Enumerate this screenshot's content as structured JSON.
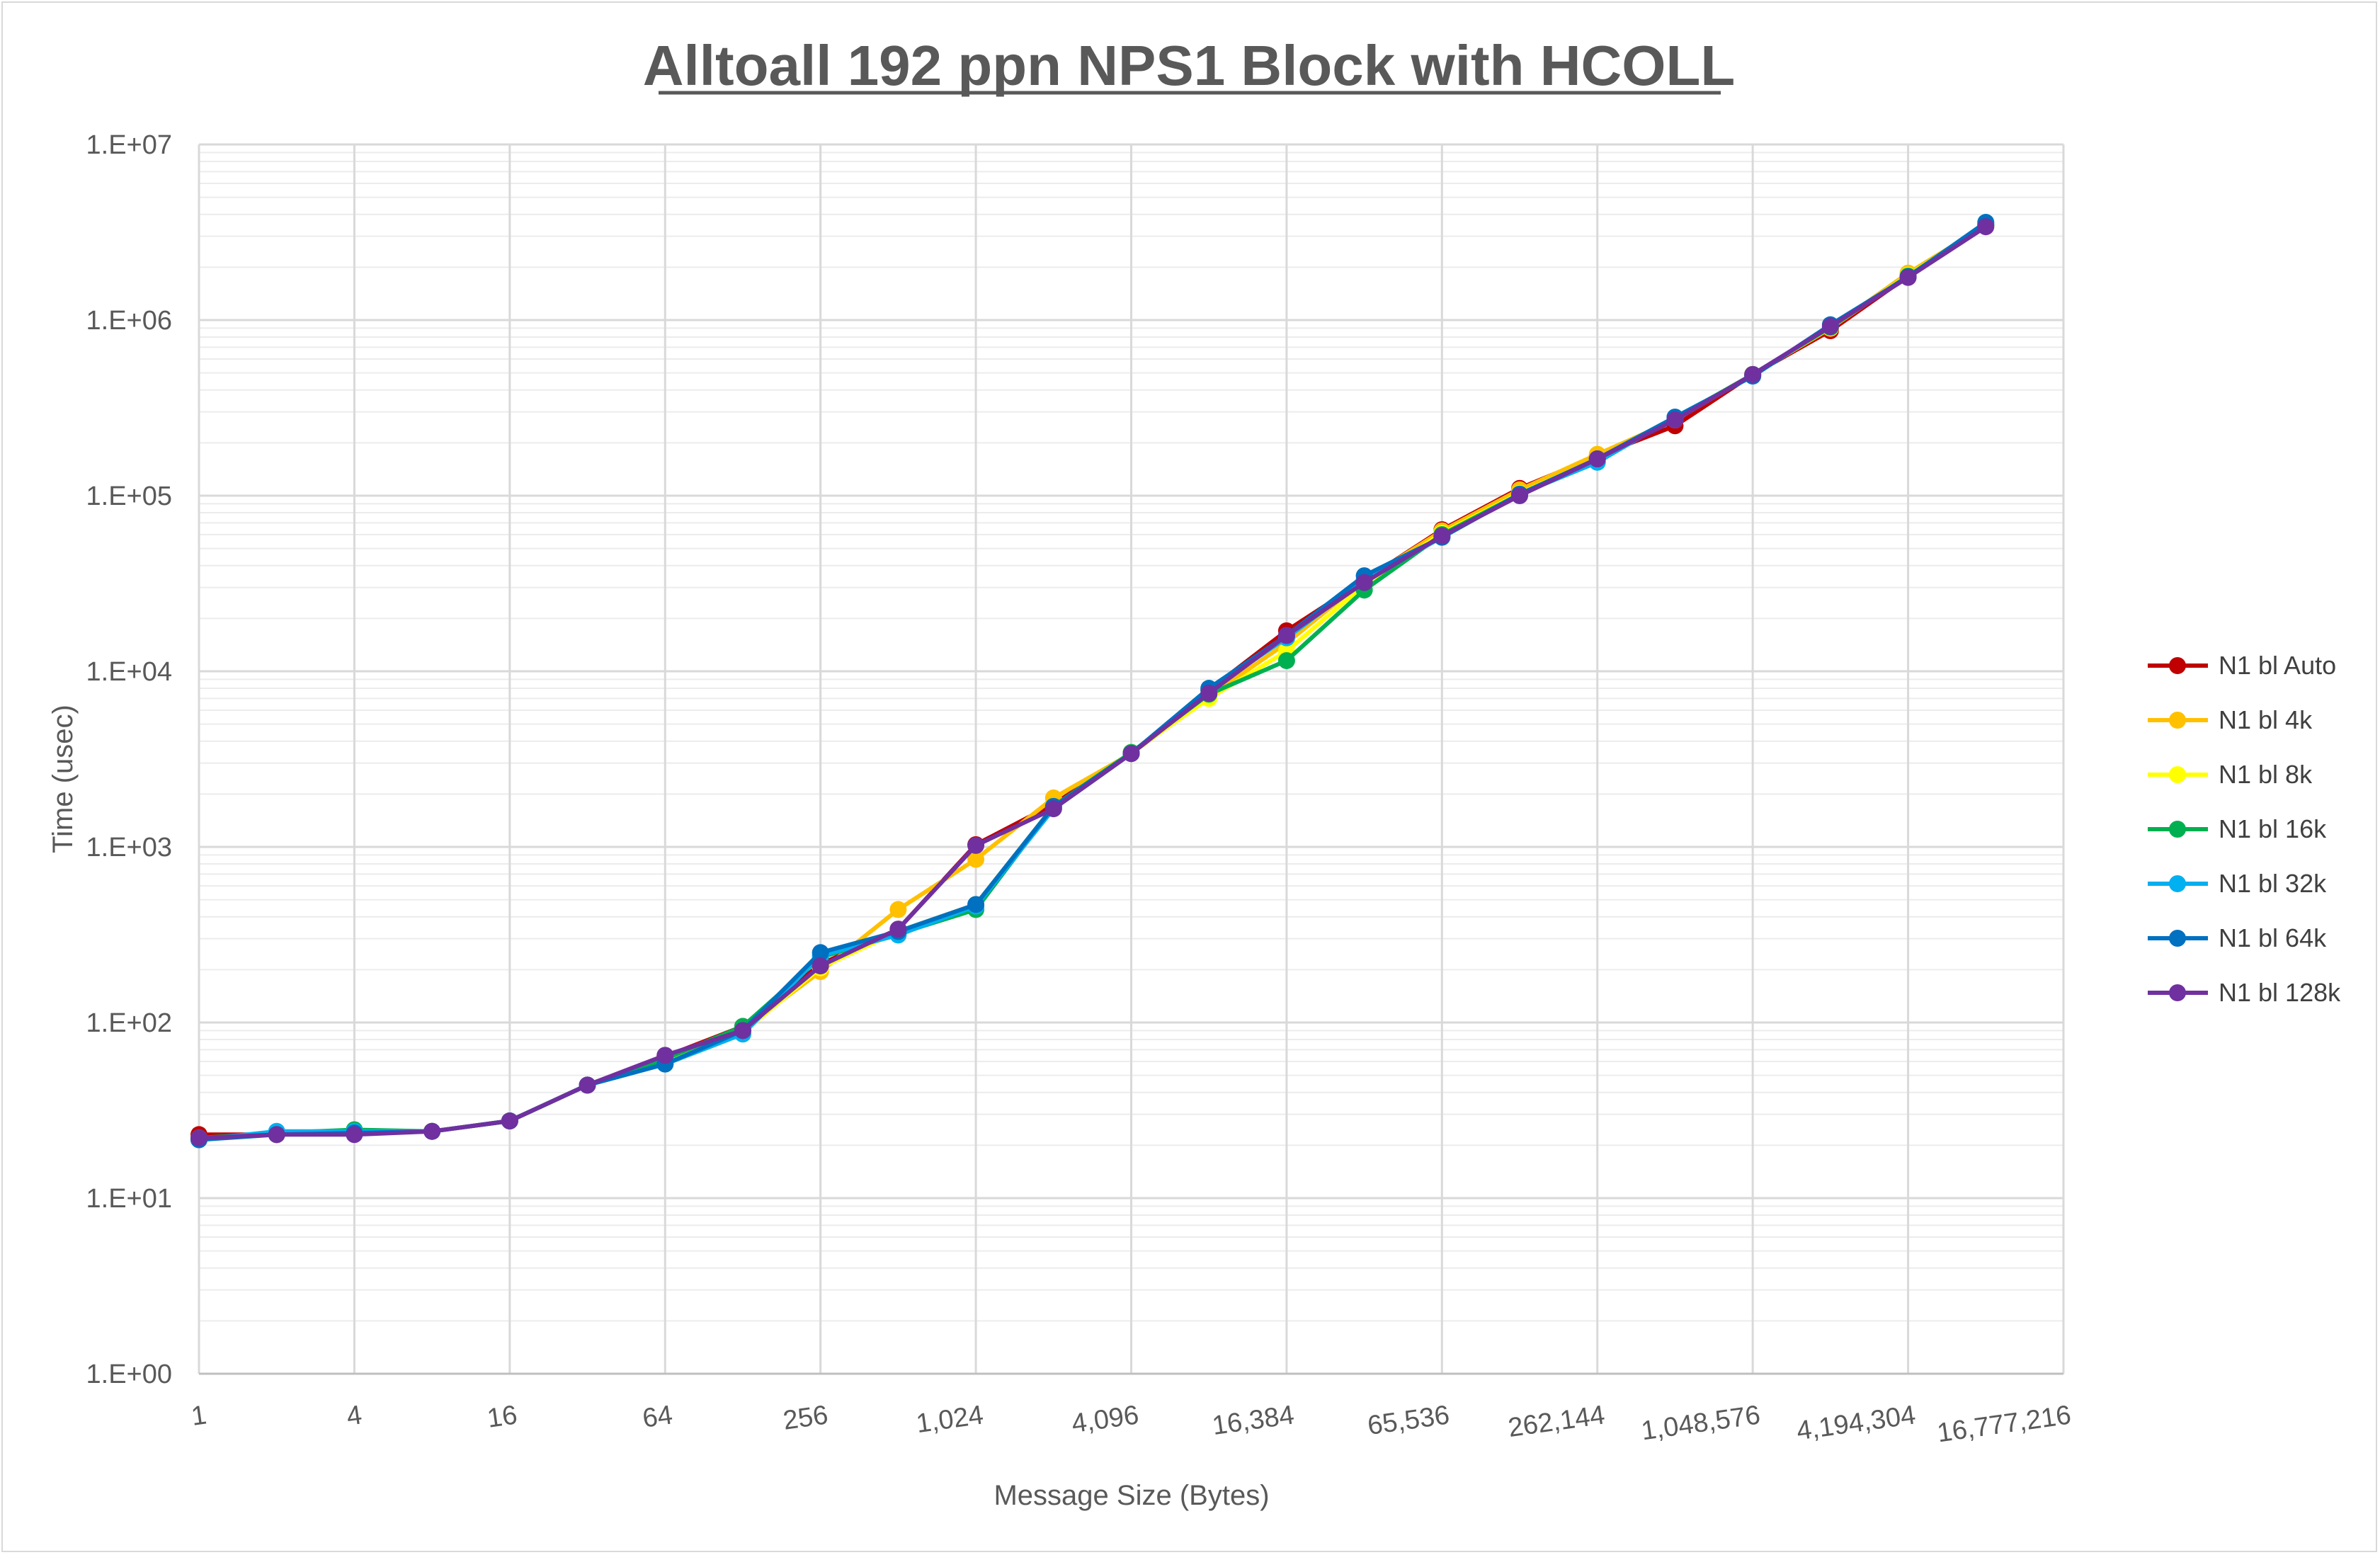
{
  "chart_data": {
    "type": "line",
    "title": "Alltoall 192 ppn NPS1 Block with HCOLL",
    "xlabel": "Message Size (Bytes)",
    "ylabel": "Time (usec)",
    "x_scale": "log2",
    "y_scale": "log10",
    "x": [
      1,
      2,
      4,
      8,
      16,
      32,
      64,
      128,
      256,
      512,
      1024,
      2048,
      4096,
      8192,
      16384,
      32768,
      65536,
      131072,
      262144,
      524288,
      1048576,
      2097152,
      4194304,
      8388608
    ],
    "xlim": [
      1,
      16777216
    ],
    "ylim": [
      1,
      10000000
    ],
    "x_tick_labels": [
      "1",
      "4",
      "16",
      "64",
      "256",
      "1,024",
      "4,096",
      "16,384",
      "65,536",
      "262,144",
      "1,048,576",
      "4,194,304",
      "16,777,216"
    ],
    "y_tick_labels": [
      "1.E+00",
      "1.E+01",
      "1.E+02",
      "1.E+03",
      "1.E+04",
      "1.E+05",
      "1.E+06",
      "1.E+07"
    ],
    "grid": true,
    "legend_position": "right",
    "series": [
      {
        "name": "N1 bl Auto",
        "color": "#c00000",
        "values": [
          23,
          23,
          23.5,
          24,
          27.5,
          44,
          64,
          95,
          215,
          340,
          1030,
          1750,
          3400,
          7800,
          17000,
          33000,
          64000,
          110000,
          168000,
          250000,
          490000,
          870000,
          1780000,
          3450000
        ]
      },
      {
        "name": "N1 bl 4k",
        "color": "#ffc000",
        "values": [
          22,
          23,
          23.5,
          24,
          27.5,
          44,
          64,
          92,
          195,
          440,
          850,
          1900,
          3400,
          7200,
          14500,
          33000,
          63000,
          108000,
          172000,
          270000,
          490000,
          900000,
          1850000,
          3450000
        ]
      },
      {
        "name": "N1 bl 8k",
        "color": "#ffff00",
        "values": [
          22,
          23,
          24,
          24,
          27.5,
          44,
          62,
          88,
          205,
          330,
          470,
          1700,
          3450,
          7000,
          13000,
          31000,
          61000,
          103000,
          162000,
          275000,
          490000,
          900000,
          1800000,
          3450000
        ]
      },
      {
        "name": "N1 bl 16k",
        "color": "#00b050",
        "values": [
          22,
          23.5,
          24.5,
          24,
          27.5,
          44,
          62,
          95,
          235,
          320,
          440,
          1700,
          3450,
          7400,
          11500,
          29000,
          60000,
          102000,
          162000,
          275000,
          490000,
          910000,
          1780000,
          3500000
        ]
      },
      {
        "name": "N1 bl 32k",
        "color": "#00b0f0",
        "values": [
          21.5,
          24,
          24,
          24,
          27.5,
          44,
          58,
          86,
          240,
          315,
          460,
          1650,
          3400,
          7800,
          15500,
          33000,
          58000,
          102000,
          155000,
          280000,
          480000,
          930000,
          1760000,
          3500000
        ]
      },
      {
        "name": "N1 bl 64k",
        "color": "#0070c0",
        "values": [
          21.5,
          23,
          23.5,
          24,
          27.5,
          44,
          58,
          90,
          250,
          330,
          470,
          1700,
          3400,
          8000,
          16000,
          35000,
          58000,
          102000,
          162000,
          280000,
          480000,
          940000,
          1760000,
          3600000
        ]
      },
      {
        "name": "N1 bl 128k",
        "color": "#7030a0",
        "values": [
          22,
          23,
          23,
          24,
          27.5,
          44,
          65,
          90,
          210,
          340,
          1020,
          1650,
          3400,
          7500,
          16000,
          32000,
          59000,
          100000,
          162000,
          270000,
          490000,
          920000,
          1750000,
          3400000
        ]
      }
    ]
  }
}
